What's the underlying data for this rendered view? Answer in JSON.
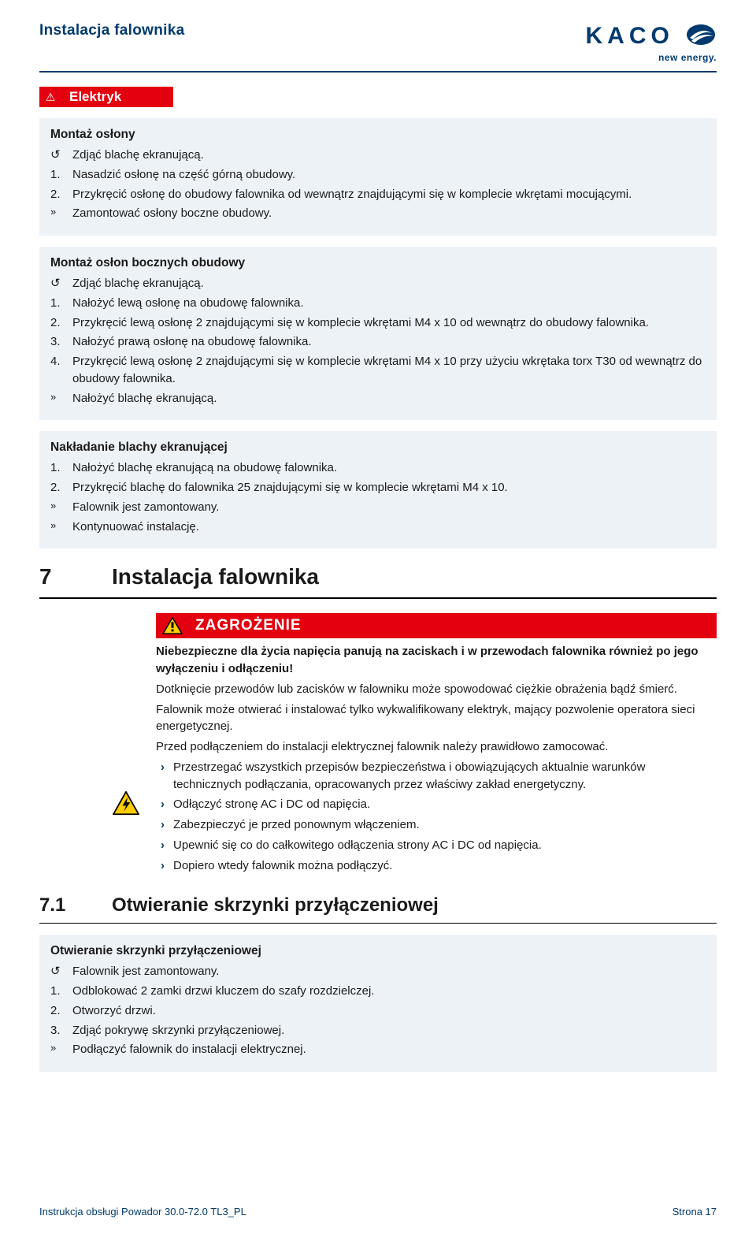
{
  "colors": {
    "brand_blue": "#003a6e",
    "danger_red": "#e3000f",
    "box_bg": "#edf2f7",
    "text": "#1a1a1a",
    "warn_yellow": "#ffcc00",
    "warn_border": "#000000"
  },
  "header": {
    "title": "Instalacja falownika",
    "logo_main": "KACO",
    "logo_sub": "new energy."
  },
  "badge": {
    "icon": "⚠",
    "label": "Elektryk"
  },
  "box1": {
    "title": "Montaż osłony",
    "steps": [
      {
        "m": "↺",
        "t": "Zdjąć blachę ekranującą."
      },
      {
        "m": "1.",
        "t": "Nasadzić osłonę na część górną obudowy."
      },
      {
        "m": "2.",
        "t": "Przykręcić osłonę do obudowy falownika od wewnątrz znajdującymi się w komplecie wkrętami mocującymi."
      },
      {
        "m": "»",
        "t": "Zamontować osłony boczne obudowy."
      }
    ]
  },
  "box2": {
    "title": "Montaż osłon bocznych obudowy",
    "steps": [
      {
        "m": "↺",
        "t": "Zdjąć blachę ekranującą."
      },
      {
        "m": "1.",
        "t": "Nałożyć lewą osłonę na obudowę falownika."
      },
      {
        "m": "2.",
        "t": "Przykręcić lewą osłonę 2 znajdującymi się w komplecie wkrętami M4 x 10 od wewnątrz do obudowy falownika."
      },
      {
        "m": "3.",
        "t": "Nałożyć prawą osłonę na obudowę falownika."
      },
      {
        "m": "4.",
        "t": "Przykręcić lewą osłonę 2 znajdującymi się w komplecie wkrętami M4 x 10 przy użyciu wkrętaka torx T30 od wewnątrz do obudowy falownika."
      },
      {
        "m": "»",
        "t": "Nałożyć blachę ekranującą."
      }
    ]
  },
  "box3": {
    "title": "Nakładanie blachy ekranującej",
    "steps": [
      {
        "m": "1.",
        "t": "Nałożyć blachę ekranującą na obudowę falownika."
      },
      {
        "m": "2.",
        "t": "Przykręcić blachę do falownika 25 znajdującymi się w komplecie wkrętami M4 x 10."
      },
      {
        "m": "»",
        "t": "Falownik jest zamontowany."
      },
      {
        "m": "»",
        "t": "Kontynuować instalację."
      }
    ]
  },
  "section7": {
    "num": "7",
    "title": "Instalacja falownika"
  },
  "danger": {
    "header": "ZAGROŻENIE",
    "bold_intro": "Niebezpieczne dla życia napięcia panują na zaciskach i w przewodach falownika również po jego wyłączeniu i odłączeniu!",
    "paras": [
      "Dotknięcie przewodów lub zacisków w falowniku może spowodować ciężkie obrażenia bądź śmierć.",
      "Falownik może otwierać i instalować tylko wykwalifikowany elektryk, mający pozwolenie operatora sieci energetycznej.",
      "Przed podłączeniem do instalacji elektrycznej falownik należy prawidłowo zamocować."
    ],
    "bullets": [
      "Przestrzegać wszystkich przepisów bezpieczeństwa i obowiązujących aktualnie warunków technicznych podłączania, opracowanych przez właściwy zakład energetyczny.",
      "Odłączyć stronę AC i DC od napięcia.",
      "Zabezpieczyć je przed ponownym włączeniem.",
      "Upewnić się co do całkowitego odłączenia strony AC i DC od napięcia.",
      "Dopiero wtedy falownik można podłączyć."
    ]
  },
  "section71": {
    "num": "7.1",
    "title": "Otwieranie skrzynki przyłączeniowej"
  },
  "box4": {
    "title": "Otwieranie skrzynki przyłączeniowej",
    "steps": [
      {
        "m": "↺",
        "t": "Falownik jest zamontowany."
      },
      {
        "m": "1.",
        "t": "Odblokować 2 zamki drzwi kluczem do szafy rozdzielczej."
      },
      {
        "m": "2.",
        "t": "Otworzyć drzwi."
      },
      {
        "m": "3.",
        "t": "Zdjąć pokrywę skrzynki przyłączeniowej."
      },
      {
        "m": "»",
        "t": "Podłączyć falownik do instalacji elektrycznej."
      }
    ]
  },
  "footer": {
    "left": "Instrukcja obsługi Powador 30.0-72.0 TL3_PL",
    "right": "Strona 17"
  }
}
